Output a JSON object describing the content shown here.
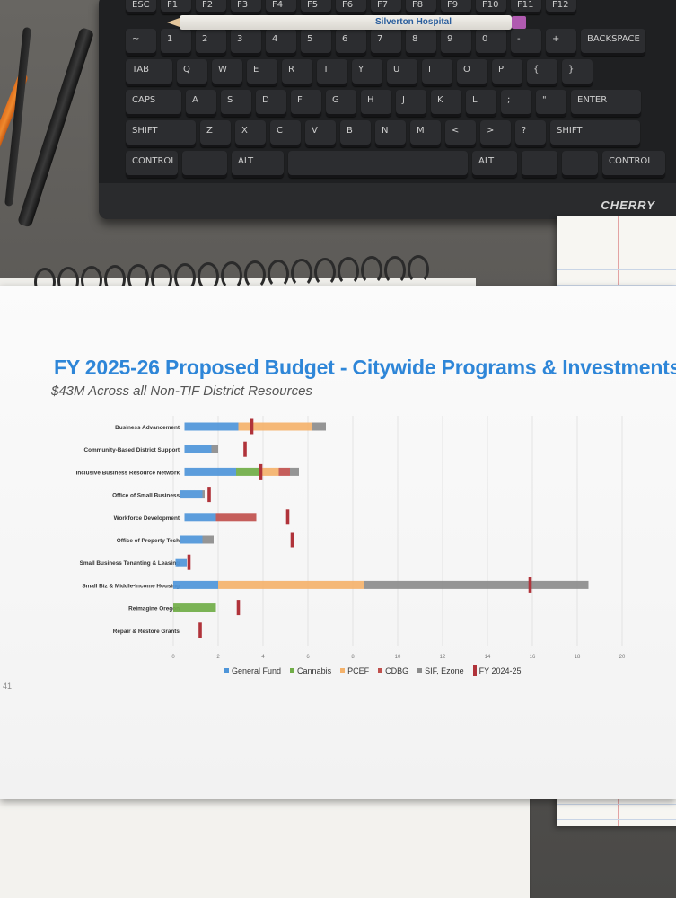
{
  "keyboard": {
    "brand": "CHERRY",
    "fkeys": [
      "ESC",
      "F1",
      "F2",
      "F3",
      "F4",
      "F5",
      "F6",
      "F7",
      "F8",
      "F9",
      "F10",
      "F11",
      "F12"
    ],
    "row1": [
      "~",
      "1",
      "2",
      "3",
      "4",
      "5",
      "6",
      "7",
      "8",
      "9",
      "0",
      "-",
      "+",
      "BACKSPACE"
    ],
    "row2": [
      "TAB",
      "Q",
      "W",
      "E",
      "R",
      "T",
      "Y",
      "U",
      "I",
      "O",
      "P",
      "{",
      "}"
    ],
    "row3": [
      "CAPS",
      "A",
      "S",
      "D",
      "F",
      "G",
      "H",
      "J",
      "K",
      "L",
      ";",
      "\"",
      "ENTER"
    ],
    "row4": [
      "SHIFT",
      "Z",
      "X",
      "C",
      "V",
      "B",
      "N",
      "M",
      "<",
      ">",
      "?",
      "SHIFT"
    ],
    "row5": [
      "CONTROL",
      "",
      "ALT",
      "",
      "ALT",
      "",
      "",
      "CONTROL"
    ]
  },
  "pencil_text": "Silverton Hospital",
  "page_number": "41",
  "chart_data": {
    "type": "bar",
    "stacked": true,
    "orientation": "horizontal",
    "title": "FY 2025-26 Proposed Budget - Citywide Programs & Investments",
    "subtitle": "$43M Across all Non-TIF District Resources",
    "categories": [
      "Business Advancement",
      "Community-Based District Support",
      "Inclusive Business Resource Network",
      "Office of Small Business",
      "Workforce Development",
      "Office of Property Tech",
      "Small Business Tenanting & Leasing",
      "Small Biz & Middle-Income Housing",
      "Reimagine Oregon",
      "Repair & Restore Grants"
    ],
    "series": [
      {
        "name": "General Fund",
        "color": "#4e95d9",
        "values": [
          2.4,
          1.2,
          2.3,
          1.0,
          1.4,
          1.0,
          0.5,
          2.0,
          0.0,
          0.0
        ]
      },
      {
        "name": "Cannabis",
        "color": "#70ad47",
        "values": [
          0.0,
          0.0,
          1.1,
          0.0,
          0.0,
          0.0,
          0.0,
          0.0,
          1.9,
          0.0
        ]
      },
      {
        "name": "PCEF",
        "color": "#f4b26b",
        "values": [
          3.3,
          0.0,
          0.8,
          0.0,
          0.0,
          0.0,
          0.0,
          6.5,
          0.0,
          0.0
        ]
      },
      {
        "name": "CDBG",
        "color": "#c0504d",
        "values": [
          0.0,
          0.0,
          0.5,
          0.0,
          1.8,
          0.0,
          0.0,
          0.0,
          0.0,
          0.0
        ]
      },
      {
        "name": "SIF, Ezone",
        "color": "#8c8c8c",
        "values": [
          0.6,
          0.3,
          0.4,
          0.1,
          0.0,
          0.5,
          0.0,
          10.0,
          0.0,
          0.0
        ]
      }
    ],
    "offsets": [
      0.5,
      0.5,
      0.5,
      0.3,
      0.5,
      0.3,
      0.1,
      0.0,
      0.0,
      0.0
    ],
    "markers": {
      "name": "FY 2024-25",
      "color": "#b0333a",
      "values": [
        3.5,
        3.2,
        3.9,
        1.6,
        5.1,
        5.3,
        0.7,
        15.9,
        2.9,
        1.2
      ]
    },
    "xticks": [
      0,
      2,
      4,
      6,
      8,
      10,
      12,
      14,
      16,
      18,
      20
    ],
    "xlim": [
      0,
      20
    ],
    "grid": true,
    "legend": "bottom"
  }
}
